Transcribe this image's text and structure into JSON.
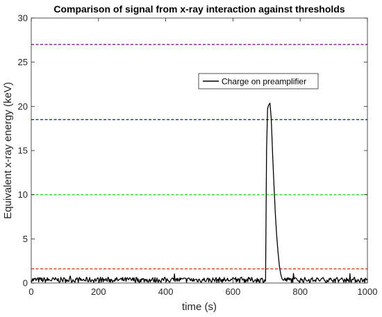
{
  "chart_data": {
    "type": "line",
    "title": "Comparison of signal from x-ray interaction against thresholds",
    "xlabel": "time (s)",
    "ylabel": "Equivalent x-ray energy (keV)",
    "xlim": [
      0,
      1000
    ],
    "ylim": [
      0,
      30
    ],
    "xticks": [
      0,
      200,
      400,
      600,
      800,
      1000
    ],
    "yticks": [
      0,
      5,
      10,
      15,
      20,
      25,
      30
    ],
    "grid": false,
    "legend": {
      "placement": "upper-center-right",
      "entries": [
        "Charge on preamplifier"
      ]
    },
    "thresholds": [
      {
        "y": 27,
        "color": "#7B1F8F"
      },
      {
        "y": 18.5,
        "color": "#1F1FCC"
      },
      {
        "y": 10,
        "color": "#22DD22"
      },
      {
        "y": 1.6,
        "color": "#EE2222"
      }
    ],
    "series": [
      {
        "name": "Charge on preamplifier",
        "color": "#000000",
        "baseline_noise": {
          "range": [
            0,
            1000
          ],
          "mean": 0.35,
          "amplitude": 0.6
        },
        "pulse": {
          "x": [
            697,
            700,
            703,
            706,
            710,
            714,
            718,
            722,
            726,
            730,
            734,
            738,
            742,
            746,
            750
          ],
          "y": [
            0.3,
            15,
            19.8,
            20.2,
            20.3,
            18.5,
            14.5,
            11,
            8,
            5.5,
            3.5,
            2,
            1,
            0.5,
            0.3
          ]
        }
      }
    ]
  }
}
